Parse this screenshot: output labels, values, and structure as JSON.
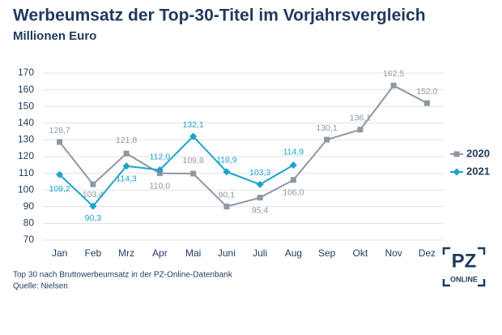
{
  "chart_data": {
    "type": "line",
    "title": "Werbeumsatz der Top-30-Titel im Vorjahrsvergleich",
    "subtitle": "Millionen Euro",
    "categories": [
      "Jan",
      "Feb",
      "Mrz",
      "Apr",
      "Mai",
      "Juni",
      "Juli",
      "Aug",
      "Sep",
      "Okt",
      "Nov",
      "Dez"
    ],
    "series": [
      {
        "name": "2020",
        "color": "#8e97a3",
        "marker": "square",
        "values": [
          128.7,
          103.4,
          121.8,
          110.0,
          109.8,
          90.1,
          95.4,
          106.0,
          130.1,
          136.1,
          162.5,
          152.0
        ],
        "value_labels": [
          "128,7",
          "103,4",
          "121,8",
          "110,0",
          "109,8",
          "90,1",
          "95,4",
          "106,0",
          "130,1",
          "136,1",
          "162,5",
          "152,0"
        ]
      },
      {
        "name": "2021",
        "color": "#1ba3c9",
        "marker": "diamond",
        "values": [
          109.2,
          90.3,
          114.3,
          112.0,
          132.1,
          110.9,
          103.3,
          114.9,
          null,
          null,
          null,
          null
        ],
        "value_labels": [
          "109,2",
          "90,3",
          "114,3",
          "112,0",
          "132,1",
          "110,9",
          "103,3",
          "114,9",
          null,
          null,
          null,
          null
        ]
      }
    ],
    "ylim": [
      70,
      170
    ],
    "yticks": [
      70,
      80,
      90,
      100,
      110,
      120,
      130,
      140,
      150,
      160,
      170
    ],
    "grid": true,
    "legend": "right"
  },
  "notes": [
    "Top 30 nach Bruttowerbeumsatz in der PZ-Online-Datenbank",
    "Quelle: Nielsen"
  ],
  "logo": {
    "main": "PZ",
    "sub": "ONLINE"
  }
}
